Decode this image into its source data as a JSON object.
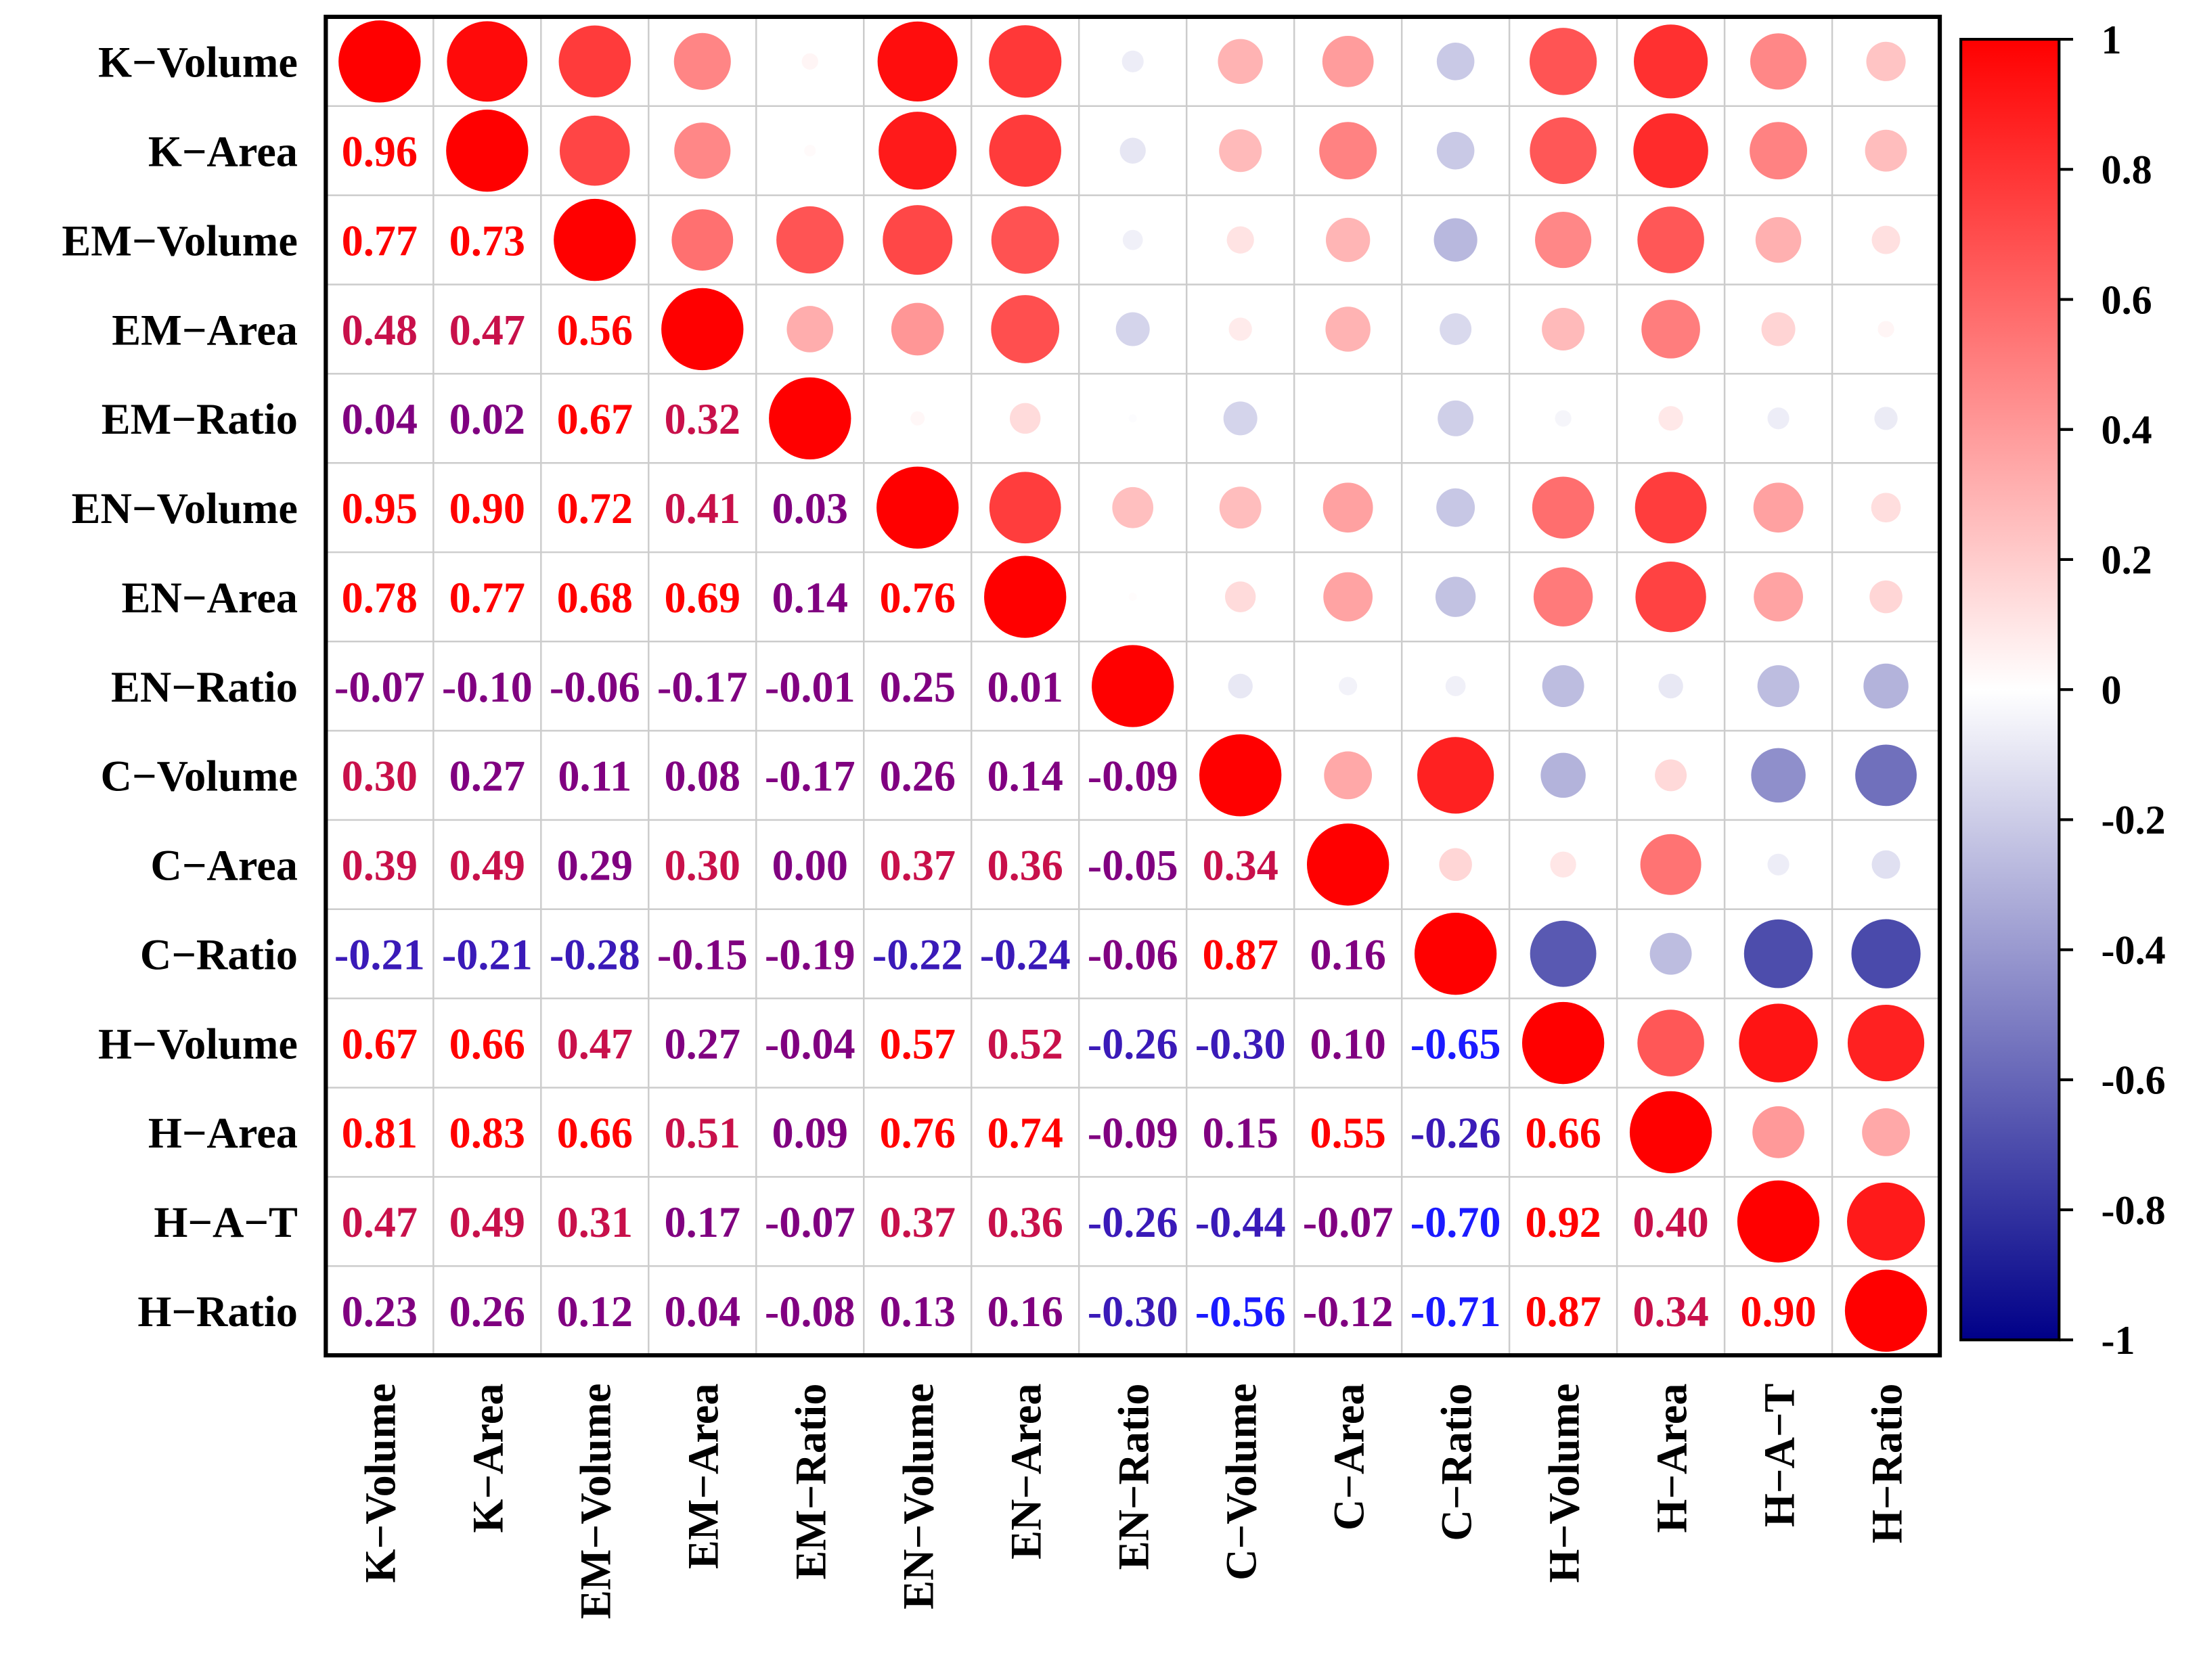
{
  "chart_data": {
    "type": "heatmap",
    "subtype": "correlation-matrix",
    "lower_triangle": "numeric",
    "upper_triangle": "circles",
    "labels": [
      "K−Volume",
      "K−Area",
      "EM−Volume",
      "EM−Area",
      "EM−Ratio",
      "EN−Volume",
      "EN−Area",
      "EN−Ratio",
      "C−Volume",
      "C−Area",
      "C−Ratio",
      "H−Volume",
      "H−Area",
      "H−A−T",
      "H−Ratio"
    ],
    "matrix": [
      [
        1.0,
        0.96,
        0.77,
        0.48,
        0.04,
        0.95,
        0.78,
        -0.07,
        0.3,
        0.39,
        -0.21,
        0.67,
        0.81,
        0.47,
        0.23
      ],
      [
        0.96,
        1.0,
        0.73,
        0.47,
        0.02,
        0.9,
        0.77,
        -0.1,
        0.27,
        0.49,
        -0.21,
        0.66,
        0.83,
        0.49,
        0.26
      ],
      [
        0.77,
        0.73,
        1.0,
        0.56,
        0.67,
        0.72,
        0.68,
        -0.06,
        0.11,
        0.29,
        -0.28,
        0.47,
        0.66,
        0.31,
        0.12
      ],
      [
        0.48,
        0.47,
        0.56,
        1.0,
        0.32,
        0.41,
        0.69,
        -0.17,
        0.08,
        0.3,
        -0.15,
        0.27,
        0.51,
        0.17,
        0.04
      ],
      [
        0.04,
        0.02,
        0.67,
        0.32,
        1.0,
        0.03,
        0.14,
        -0.01,
        -0.17,
        0.0,
        -0.19,
        -0.04,
        0.09,
        -0.07,
        -0.08
      ],
      [
        0.95,
        0.9,
        0.72,
        0.41,
        0.03,
        1.0,
        0.76,
        0.25,
        0.26,
        0.37,
        -0.22,
        0.57,
        0.76,
        0.37,
        0.13
      ],
      [
        0.78,
        0.77,
        0.68,
        0.69,
        0.14,
        0.76,
        1.0,
        0.01,
        0.14,
        0.36,
        -0.24,
        0.52,
        0.74,
        0.36,
        0.16
      ],
      [
        -0.07,
        -0.1,
        -0.06,
        -0.17,
        -0.01,
        0.25,
        0.01,
        1.0,
        -0.09,
        -0.05,
        -0.06,
        -0.26,
        -0.09,
        -0.26,
        -0.3
      ],
      [
        0.3,
        0.27,
        0.11,
        0.08,
        -0.17,
        0.26,
        0.14,
        -0.09,
        1.0,
        0.34,
        0.87,
        -0.3,
        0.15,
        -0.44,
        -0.56
      ],
      [
        0.39,
        0.49,
        0.29,
        0.3,
        0.0,
        0.37,
        0.36,
        -0.05,
        0.34,
        1.0,
        0.16,
        0.1,
        0.55,
        -0.07,
        -0.12
      ],
      [
        -0.21,
        -0.21,
        -0.28,
        -0.15,
        -0.19,
        -0.22,
        -0.24,
        -0.06,
        0.87,
        0.16,
        1.0,
        -0.65,
        -0.26,
        -0.7,
        -0.71
      ],
      [
        0.67,
        0.66,
        0.47,
        0.27,
        -0.04,
        0.57,
        0.52,
        -0.26,
        -0.3,
        0.1,
        -0.65,
        1.0,
        0.66,
        0.92,
        0.87
      ],
      [
        0.81,
        0.83,
        0.66,
        0.51,
        0.09,
        0.76,
        0.74,
        -0.09,
        0.15,
        0.55,
        -0.26,
        0.66,
        1.0,
        0.4,
        0.34
      ],
      [
        0.47,
        0.49,
        0.31,
        0.17,
        -0.07,
        0.37,
        0.36,
        -0.26,
        -0.44,
        -0.07,
        -0.7,
        0.92,
        0.4,
        1.0,
        0.9
      ],
      [
        0.23,
        0.26,
        0.12,
        0.04,
        -0.08,
        0.13,
        0.16,
        -0.3,
        -0.56,
        -0.12,
        -0.71,
        0.87,
        0.34,
        0.9,
        1.0
      ]
    ],
    "colorbar": {
      "range": [
        -1,
        1
      ],
      "ticks": [
        "1",
        "0.8",
        "0.6",
        "0.4",
        "0.2",
        "0",
        "-0.2",
        "-0.4",
        "-0.6",
        "-0.8",
        "-1"
      ],
      "colors": {
        "negative": "#000088",
        "mid": "#ffffff",
        "positive": "#ff0000"
      }
    },
    "legend_position": "right",
    "grid": true
  }
}
